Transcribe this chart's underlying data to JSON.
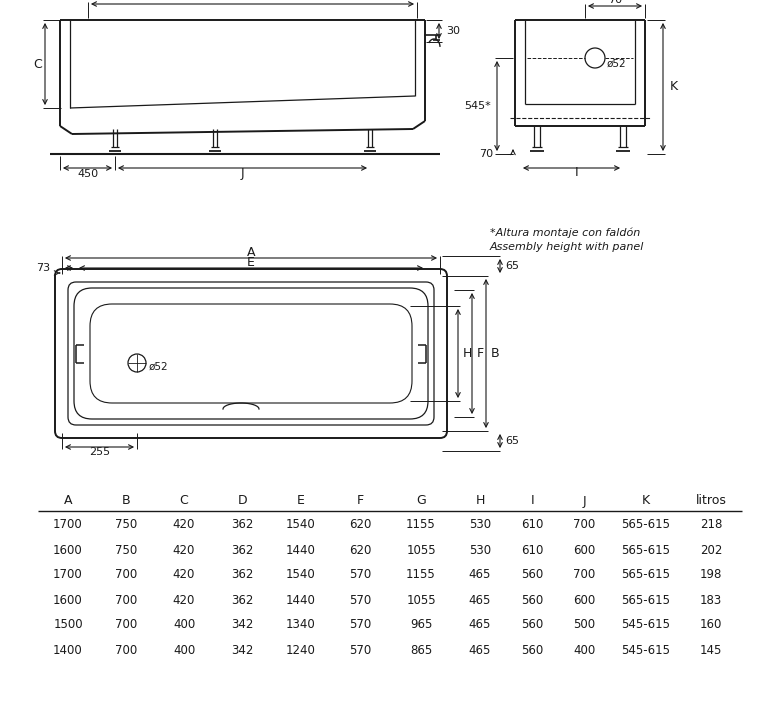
{
  "bg_color": "#ffffff",
  "line_color": "#1a1a1a",
  "text_color": "#1a1a1a",
  "table_headers": [
    "A",
    "B",
    "C",
    "D",
    "E",
    "F",
    "G",
    "H",
    "I",
    "J",
    "K",
    "litros"
  ],
  "table_rows": [
    [
      "1700",
      "750",
      "420",
      "362",
      "1540",
      "620",
      "1155",
      "530",
      "610",
      "700",
      "565-615",
      "218"
    ],
    [
      "1600",
      "750",
      "420",
      "362",
      "1440",
      "620",
      "1055",
      "530",
      "610",
      "600",
      "565-615",
      "202"
    ],
    [
      "1700",
      "700",
      "420",
      "362",
      "1540",
      "570",
      "1155",
      "465",
      "560",
      "700",
      "565-615",
      "198"
    ],
    [
      "1600",
      "700",
      "420",
      "362",
      "1440",
      "570",
      "1055",
      "465",
      "560",
      "600",
      "565-615",
      "183"
    ],
    [
      "1500",
      "700",
      "400",
      "342",
      "1340",
      "570",
      "965",
      "465",
      "560",
      "500",
      "545-615",
      "160"
    ],
    [
      "1400",
      "700",
      "400",
      "342",
      "1240",
      "570",
      "865",
      "465",
      "560",
      "400",
      "545-615",
      "145"
    ]
  ],
  "note_line1": "*Altura montaje con faldón",
  "note_line2": "Assembly height with panel"
}
